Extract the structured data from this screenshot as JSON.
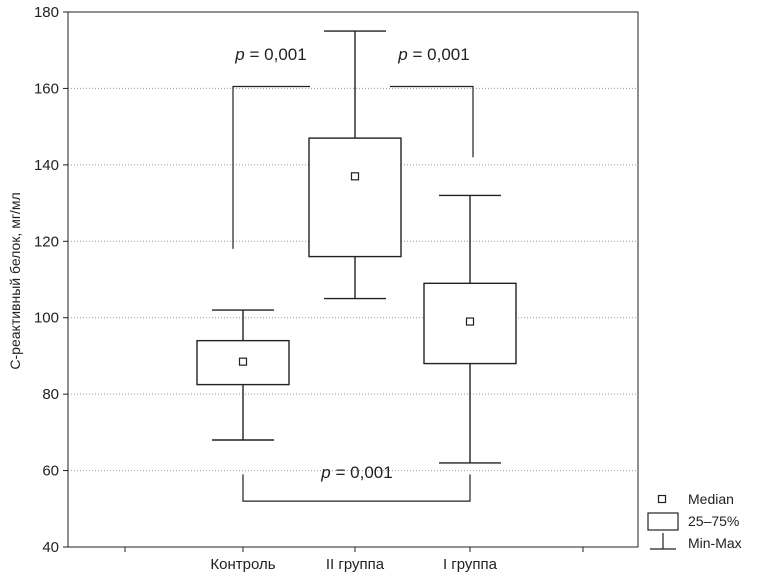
{
  "chart_data": {
    "type": "box",
    "ylabel": "С-реактивный белок, мг/мл",
    "ylim": [
      40,
      180
    ],
    "yticks": [
      40,
      60,
      80,
      100,
      120,
      140,
      160,
      180
    ],
    "ytick_labels": [
      "40",
      "60",
      "80",
      "100",
      "120",
      "140",
      "160",
      "180"
    ],
    "grid": "horizontal dotted",
    "categories": [
      "Контроль",
      "II группа",
      "I группа"
    ],
    "boxes": [
      {
        "category": "Контроль",
        "min": 68,
        "q1": 82.5,
        "median": 88.5,
        "q3": 94,
        "max": 102
      },
      {
        "category": "II группа",
        "min": 105,
        "q1": 116,
        "median": 137,
        "q3": 147,
        "max": 175
      },
      {
        "category": "I группа",
        "min": 62,
        "q1": 88,
        "median": 99,
        "q3": 109,
        "max": 132
      }
    ],
    "annotations": [
      {
        "text_italic": "p",
        "text": " = 0,001",
        "between": [
          "Контроль",
          "II группа"
        ],
        "bracket_y": 160.5
      },
      {
        "text_italic": "p",
        "text": " = 0,001",
        "between": [
          "II группа",
          "I группа"
        ],
        "bracket_y": 160.5
      },
      {
        "text_italic": "p",
        "text": " = 0,001",
        "between": [
          "Контроль",
          "I группа"
        ],
        "bracket_y": 52
      }
    ],
    "legend": {
      "position": "bottom-right outside",
      "items": [
        "Median",
        "25–75%",
        "Min-Max"
      ]
    }
  }
}
